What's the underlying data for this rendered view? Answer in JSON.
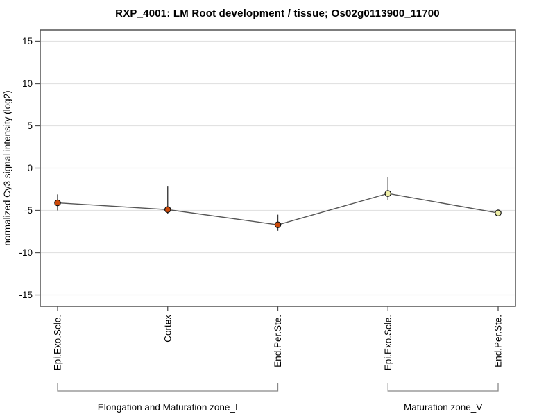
{
  "chart": {
    "title": "RXP_4001: LM Root development / tissue; Os02g0113900_11700"
  },
  "chart_data": {
    "type": "line",
    "title": "RXP_4001: LM Root development / tissue; Os02g0113900_11700",
    "xlabel": "",
    "ylabel": "normalized Cy3 signal intensity (log2)",
    "ylim": [
      -16.35,
      16.35
    ],
    "yticks": [
      15,
      10,
      5,
      0,
      -5,
      -10,
      -15
    ],
    "grid": true,
    "legend": "none",
    "categories": [
      "Epi.Exo.Scle.",
      "Cortex",
      "End.Per.Ste.",
      "Epi.Exo.Scle.",
      "End.Per.Ste."
    ],
    "series": [
      {
        "name": "normalized Cy3 signal intensity",
        "values": [
          -4.1,
          -4.9,
          -6.7,
          -3.0,
          -5.3
        ],
        "error_high": [
          -3.1,
          -2.1,
          -5.5,
          -1.1,
          -4.9
        ],
        "error_low": [
          -5.0,
          -5.4,
          -7.4,
          -3.8,
          -5.6
        ]
      }
    ],
    "point_colors": [
      "#cc4a0a",
      "#cc4a0a",
      "#cc4a0a",
      "#eeeea6",
      "#eeeea6"
    ],
    "groups": [
      {
        "label": "Elongation and Maturation zone_I",
        "from": 0,
        "to": 2
      },
      {
        "label": "Maturation zone_V",
        "from": 3,
        "to": 4
      }
    ],
    "colors": {
      "line": "#555555",
      "marker_stroke": "#111111",
      "error_bar": "#3a3a3a",
      "grid": "#e2e2e2",
      "border": "#525252",
      "tick": "#525252",
      "bracket": "#888888",
      "text": "#000000"
    }
  }
}
